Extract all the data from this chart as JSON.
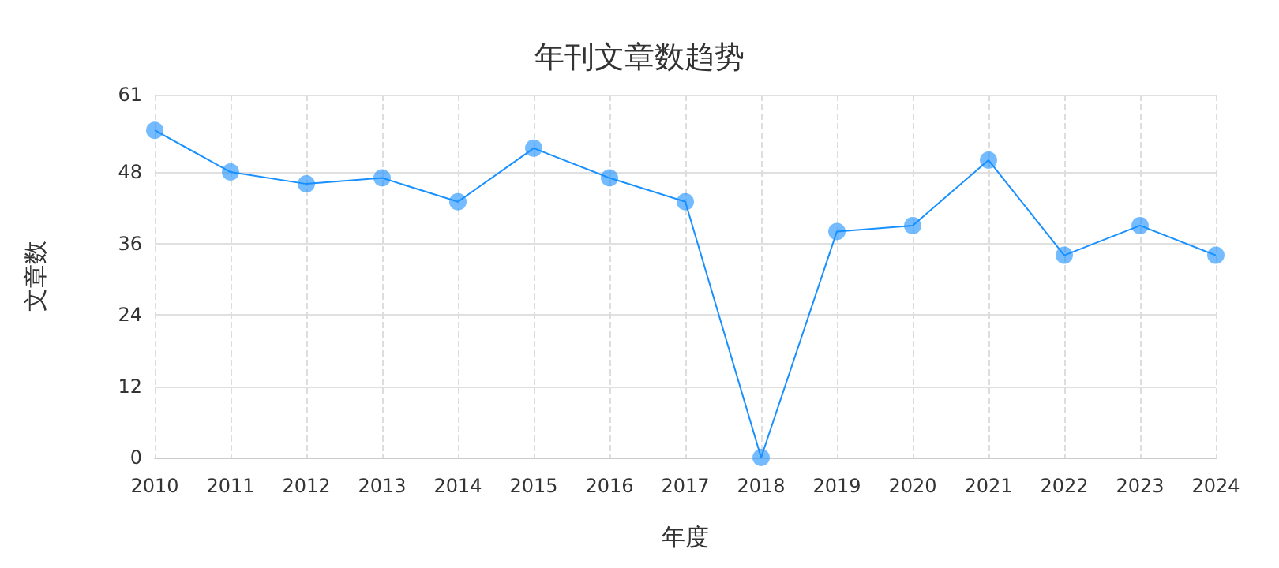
{
  "chart_data": {
    "type": "line",
    "title": "年刊文章数趋势",
    "xlabel": "年度",
    "ylabel": "文章数",
    "categories": [
      "2010",
      "2011",
      "2012",
      "2013",
      "2014",
      "2015",
      "2016",
      "2017",
      "2018",
      "2019",
      "2020",
      "2021",
      "2022",
      "2023",
      "2024"
    ],
    "series": [
      {
        "color": "#1890ff",
        "values": [
          55,
          48,
          46,
          47,
          43,
          52,
          47,
          43,
          0,
          38,
          39,
          50,
          34,
          39,
          34
        ]
      }
    ],
    "ylim": [
      0,
      61
    ],
    "yticks": [
      0,
      12,
      24,
      36,
      48,
      61
    ],
    "grid": true,
    "marker": "circle",
    "line_style": "solid"
  }
}
